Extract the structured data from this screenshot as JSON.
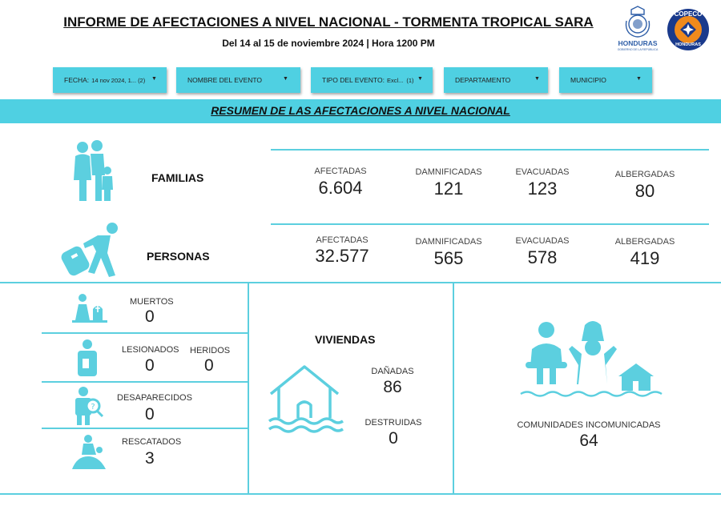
{
  "header": {
    "title": "INFORME DE AFECTACIONES A NIVEL NACIONAL - TORMENTA TROPICAL SARA",
    "subtitle": "Del 14 al 15 de noviembre 2024 | Hora 1200 PM",
    "logo_honduras_text": "HONDURAS",
    "logo_honduras_sub": "GOBIERNO DE LA REPÚBLICA",
    "logo_copeco_text": "COPECO",
    "logo_copeco_sub": "HONDURAS"
  },
  "filters": [
    {
      "label": "FECHA:",
      "value": "14 nov 2024, 1...",
      "count": "(2)"
    },
    {
      "label": "NOMBRE DEL EVENTO",
      "value": "",
      "count": ""
    },
    {
      "label": "TIPO DEL EVENTO:",
      "value": "Excl...",
      "count": "(1)"
    },
    {
      "label": "DEPARTAMENTO",
      "value": "",
      "count": ""
    },
    {
      "label": "MUNICIPIO",
      "value": "",
      "count": ""
    }
  ],
  "banner": "RESUMEN DE LAS AFECTACIONES A NIVEL NACIONAL",
  "familias": {
    "label": "FAMILIAS",
    "afectadas_label": "AFECTADAS",
    "afectadas": "6.604",
    "damnificadas_label": "DAMNIFICADAS",
    "damnificadas": "121",
    "evacuadas_label": "EVACUADAS",
    "evacuadas": "123",
    "albergadas_label": "ALBERGADAS",
    "albergadas": "80"
  },
  "personas": {
    "label": "PERSONAS",
    "afectadas_label": "AFECTADAS",
    "afectadas": "32.577",
    "damnificadas_label": "DAMNIFICADAS",
    "damnificadas": "565",
    "evacuadas_label": "EVACUADAS",
    "evacuadas": "578",
    "albergadas_label": "ALBERGADAS",
    "albergadas": "419"
  },
  "victimas": {
    "muertos_label": "MUERTOS",
    "muertos": "0",
    "lesionados_label": "LESIONADOS",
    "lesionados": "0",
    "heridos_label": "HERIDOS",
    "heridos": "0",
    "desaparecidos_label": "DESAPARECIDOS",
    "desaparecidos": "0",
    "rescatados_label": "RESCATADOS",
    "rescatados": "3"
  },
  "viviendas": {
    "label": "VIVIENDAS",
    "danadas_label": "DAÑADAS",
    "danadas": "86",
    "destruidas_label": "DESTRUIDAS",
    "destruidas": "0"
  },
  "comunidades": {
    "label": "COMUNIDADES INCOMUNICADAS",
    "value": "64"
  },
  "colors": {
    "accent": "#4fd0e2",
    "icon": "#5ccfdf",
    "copeco_blue": "#1a3a8c",
    "copeco_orange": "#f08a1c"
  }
}
